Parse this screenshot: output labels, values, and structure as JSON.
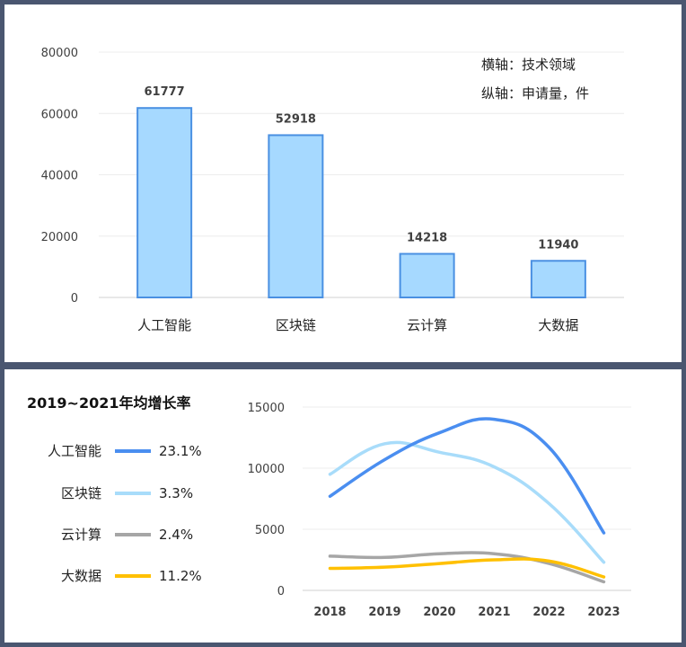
{
  "chart_data": [
    {
      "type": "bar",
      "categories": [
        "人工智能",
        "区块链",
        "云计算",
        "大数据"
      ],
      "values": [
        61777,
        52918,
        14218,
        11940
      ],
      "ylim": [
        0,
        80000
      ],
      "yticks": [
        0,
        20000,
        40000,
        60000,
        80000
      ],
      "annotations": [
        "横轴：技术领域",
        "纵轴：申请量，件"
      ],
      "grid": true,
      "colors": {
        "fill": "#a6d9ff",
        "stroke": "#4a90e2"
      }
    },
    {
      "type": "line",
      "title": "2019~2021年均增长率",
      "x": [
        "2018",
        "2019",
        "2020",
        "2021",
        "2022",
        "2023"
      ],
      "ylim": [
        0,
        15000
      ],
      "yticks": [
        0,
        5000,
        10000,
        15000
      ],
      "grid": true,
      "legend_position": "left",
      "series": [
        {
          "name": "人工智能",
          "rate": "23.1%",
          "color": "#4a8ef0",
          "values": [
            7700,
            10700,
            12900,
            14000,
            11700,
            4700
          ]
        },
        {
          "name": "区块链",
          "rate": "3.3%",
          "color": "#a8dcfa",
          "values": [
            9500,
            12000,
            11300,
            10100,
            7100,
            2300
          ]
        },
        {
          "name": "云计算",
          "rate": "2.4%",
          "color": "#a6a6a6",
          "values": [
            2800,
            2700,
            3000,
            3000,
            2200,
            700
          ]
        },
        {
          "name": "大数据",
          "rate": "11.2%",
          "color": "#ffc000",
          "values": [
            1800,
            1900,
            2200,
            2500,
            2400,
            1100
          ]
        }
      ]
    }
  ]
}
